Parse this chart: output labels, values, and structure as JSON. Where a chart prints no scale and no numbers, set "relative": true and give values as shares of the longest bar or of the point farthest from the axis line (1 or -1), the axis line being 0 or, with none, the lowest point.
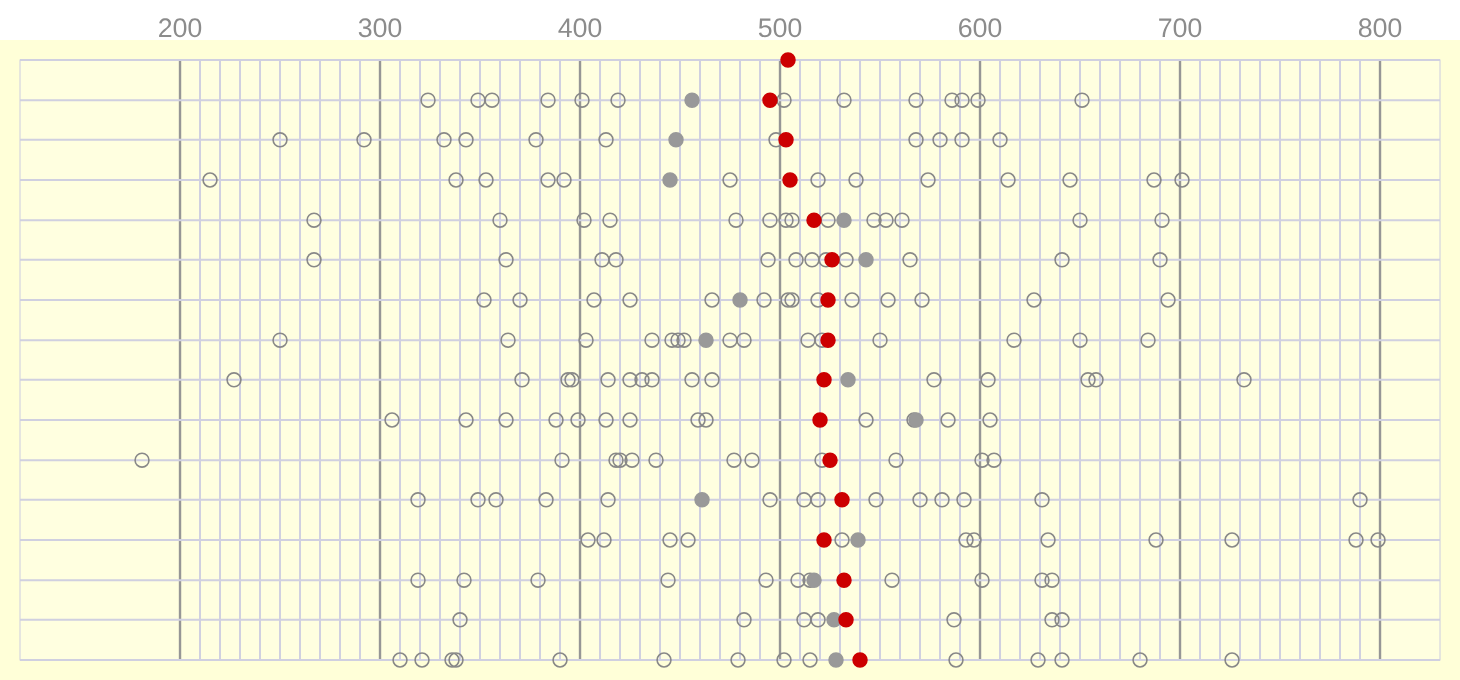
{
  "chart_data": {
    "type": "scatter",
    "relative": true,
    "grid": true,
    "xlim": [
      120,
      830
    ],
    "xticks": [
      200,
      300,
      400,
      500,
      600,
      700,
      800
    ],
    "tick_labels": "x",
    "series": [
      {
        "marker": "open circle",
        "color": "#888888",
        "x": [
          324,
          349,
          356,
          384,
          401,
          419,
          502,
          532,
          568,
          586,
          591,
          599,
          651,
          250,
          292,
          332,
          343,
          378,
          413,
          498,
          568,
          580,
          591,
          610,
          215,
          338,
          353,
          384,
          392,
          475,
          519,
          538,
          574,
          614,
          645,
          687,
          701,
          267,
          360,
          402,
          415,
          478,
          495,
          503,
          506,
          524,
          547,
          553,
          561,
          650,
          691,
          267,
          363,
          411,
          418,
          494,
          508,
          516,
          523,
          533,
          565,
          641,
          690,
          352,
          370,
          407,
          425,
          466,
          492,
          504,
          506,
          519,
          536,
          554,
          571,
          627,
          694,
          250,
          364,
          403,
          436,
          446,
          449,
          452,
          475,
          482,
          514,
          521,
          550,
          617,
          650,
          684,
          227,
          371,
          394,
          396,
          414,
          425,
          431,
          436,
          456,
          466,
          577,
          604,
          654,
          658,
          732,
          306,
          343,
          363,
          388,
          399,
          413,
          425,
          459,
          463,
          543,
          567,
          584,
          605,
          181,
          391,
          418,
          420,
          426,
          438,
          477,
          486,
          521,
          558,
          601,
          607,
          319,
          349,
          358,
          383,
          414,
          495,
          512,
          519,
          548,
          570,
          581,
          592,
          631,
          790,
          404,
          412,
          445,
          454,
          531,
          593,
          597,
          634,
          688,
          726,
          788,
          799,
          319,
          342,
          379,
          444,
          493,
          509,
          515,
          556,
          601,
          631,
          636,
          340,
          482,
          512,
          519,
          587,
          636,
          641,
          310,
          321,
          336,
          338,
          390,
          442,
          479,
          502,
          515,
          588,
          629,
          641,
          680,
          726
        ],
        "values": [
          0.933,
          0.933,
          0.933,
          0.933,
          0.933,
          0.933,
          0.933,
          0.933,
          0.933,
          0.933,
          0.933,
          0.933,
          0.933,
          0.867,
          0.867,
          0.867,
          0.867,
          0.867,
          0.867,
          0.867,
          0.867,
          0.867,
          0.867,
          0.867,
          0.8,
          0.8,
          0.8,
          0.8,
          0.8,
          0.8,
          0.8,
          0.8,
          0.8,
          0.8,
          0.8,
          0.8,
          0.8,
          0.733,
          0.733,
          0.733,
          0.733,
          0.733,
          0.733,
          0.733,
          0.733,
          0.733,
          0.733,
          0.733,
          0.733,
          0.733,
          0.733,
          0.667,
          0.667,
          0.667,
          0.667,
          0.667,
          0.667,
          0.667,
          0.667,
          0.667,
          0.667,
          0.667,
          0.667,
          0.6,
          0.6,
          0.6,
          0.6,
          0.6,
          0.6,
          0.6,
          0.6,
          0.6,
          0.6,
          0.6,
          0.6,
          0.6,
          0.6,
          0.533,
          0.533,
          0.533,
          0.533,
          0.533,
          0.533,
          0.533,
          0.533,
          0.533,
          0.533,
          0.533,
          0.533,
          0.533,
          0.533,
          0.533,
          0.467,
          0.467,
          0.467,
          0.467,
          0.467,
          0.467,
          0.467,
          0.467,
          0.467,
          0.467,
          0.467,
          0.467,
          0.467,
          0.467,
          0.467,
          0.4,
          0.4,
          0.4,
          0.4,
          0.4,
          0.4,
          0.4,
          0.4,
          0.4,
          0.4,
          0.4,
          0.4,
          0.4,
          0.333,
          0.333,
          0.333,
          0.333,
          0.333,
          0.333,
          0.333,
          0.333,
          0.333,
          0.333,
          0.333,
          0.333,
          0.267,
          0.267,
          0.267,
          0.267,
          0.267,
          0.267,
          0.267,
          0.267,
          0.267,
          0.267,
          0.267,
          0.267,
          0.267,
          0.267,
          0.2,
          0.2,
          0.2,
          0.2,
          0.2,
          0.2,
          0.2,
          0.2,
          0.2,
          0.2,
          0.2,
          0.2,
          0.133,
          0.133,
          0.133,
          0.133,
          0.133,
          0.133,
          0.133,
          0.133,
          0.133,
          0.133,
          0.133,
          0.067,
          0.067,
          0.067,
          0.067,
          0.067,
          0.067,
          0.067,
          0,
          0,
          0,
          0,
          0,
          0,
          0,
          0,
          0,
          0,
          0,
          0,
          0,
          0
        ]
      },
      {
        "marker": "circle",
        "color": "#999999",
        "x": [
          456,
          448,
          445,
          532,
          543,
          480,
          463,
          534,
          568,
          461,
          539,
          517,
          527,
          528
        ],
        "values": [
          0.933,
          0.867,
          0.8,
          0.733,
          0.667,
          0.6,
          0.533,
          0.467,
          0.4,
          0.267,
          0.2,
          0.133,
          0.067,
          0
        ]
      },
      {
        "marker": "circle",
        "color": "#cc0000",
        "x": [
          504,
          495,
          503,
          505,
          517,
          526,
          524,
          524,
          522,
          520,
          525,
          531,
          522,
          532,
          533,
          540
        ],
        "values": [
          1,
          0.933,
          0.867,
          0.8,
          0.733,
          0.667,
          0.6,
          0.533,
          0.467,
          0.4,
          0.333,
          0.267,
          0.2,
          0.133,
          0.067,
          0
        ]
      }
    ]
  }
}
